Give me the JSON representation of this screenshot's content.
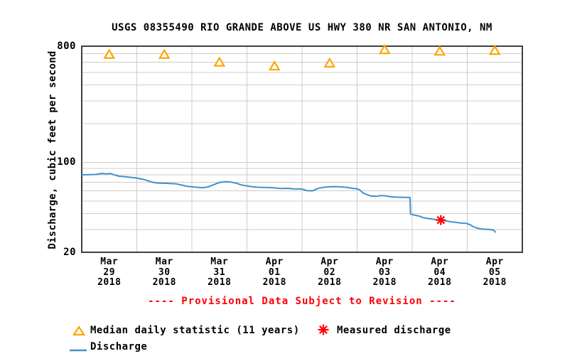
{
  "title": "USGS 08355490 RIO GRANDE ABOVE US HWY 380 NR SAN ANTONIO, NM",
  "provisional_note": "---- Provisional Data Subject to Revision ----",
  "legend": {
    "median_label": "Median daily statistic (11 years)",
    "measured_label": "Measured discharge",
    "discharge_label": "Discharge"
  },
  "colors": {
    "discharge": "#4091ce",
    "median": "#ffa500",
    "measured": "#ff0000",
    "provisional": "#ff0000",
    "grid": "#cccccc",
    "frame": "#404040",
    "text": "#000000"
  },
  "chart_data": {
    "type": "line",
    "title": "USGS 08355490 RIO GRANDE ABOVE US HWY 380 NR SAN ANTONIO, NM",
    "xlabel": "",
    "ylabel": "Discharge, cubic feet per second",
    "y_scale": "log",
    "ylim": [
      20,
      800
    ],
    "y_major_ticks": [
      800,
      100,
      20
    ],
    "y_gridlines": [
      700,
      600,
      500,
      400,
      300,
      200,
      100,
      90,
      80,
      70,
      60,
      50,
      40,
      30
    ],
    "x_days": 8,
    "x_categories": [
      [
        "Mar",
        "29",
        "2018"
      ],
      [
        "Mar",
        "30",
        "2018"
      ],
      [
        "Mar",
        "31",
        "2018"
      ],
      [
        "Apr",
        "01",
        "2018"
      ],
      [
        "Apr",
        "02",
        "2018"
      ],
      [
        "Apr",
        "03",
        "2018"
      ],
      [
        "Apr",
        "04",
        "2018"
      ],
      [
        "Apr",
        "05",
        "2018"
      ]
    ],
    "grid": true,
    "legend_position": "bottom-left",
    "series": [
      {
        "name": "Discharge",
        "marker": "line",
        "units": "cubic feet per second",
        "x_units": "days since Mar 29 2018 00:00",
        "points": [
          [
            0.0,
            80.0
          ],
          [
            0.13,
            80.2
          ],
          [
            0.26,
            80.5
          ],
          [
            0.36,
            82.0
          ],
          [
            0.45,
            81.3
          ],
          [
            0.52,
            82.0
          ],
          [
            0.58,
            80.2
          ],
          [
            0.68,
            78.0
          ],
          [
            0.77,
            77.5
          ],
          [
            0.88,
            76.5
          ],
          [
            1.0,
            75.5
          ],
          [
            1.1,
            74.0
          ],
          [
            1.2,
            72.0
          ],
          [
            1.29,
            70.0
          ],
          [
            1.38,
            69.0
          ],
          [
            1.51,
            68.8
          ],
          [
            1.61,
            68.5
          ],
          [
            1.72,
            68.0
          ],
          [
            1.82,
            66.5
          ],
          [
            1.92,
            65.0
          ],
          [
            2.0,
            64.5
          ],
          [
            2.1,
            64.0
          ],
          [
            2.19,
            63.6
          ],
          [
            2.28,
            64.2
          ],
          [
            2.36,
            66.0
          ],
          [
            2.45,
            68.5
          ],
          [
            2.52,
            70.0
          ],
          [
            2.62,
            70.6
          ],
          [
            2.71,
            70.2
          ],
          [
            2.8,
            69.0
          ],
          [
            2.9,
            66.7
          ],
          [
            3.0,
            65.6
          ],
          [
            3.1,
            64.5
          ],
          [
            3.23,
            64.0
          ],
          [
            3.35,
            63.8
          ],
          [
            3.48,
            63.4
          ],
          [
            3.61,
            62.6
          ],
          [
            3.74,
            62.8
          ],
          [
            3.83,
            62.3
          ],
          [
            3.94,
            62.1
          ],
          [
            4.0,
            62.0
          ],
          [
            4.09,
            60.3
          ],
          [
            4.19,
            60.1
          ],
          [
            4.3,
            63.0
          ],
          [
            4.39,
            64.0
          ],
          [
            4.48,
            64.5
          ],
          [
            4.58,
            64.8
          ],
          [
            4.68,
            64.5
          ],
          [
            4.81,
            64.0
          ],
          [
            4.9,
            62.9
          ],
          [
            5.0,
            62.2
          ],
          [
            5.05,
            61.0
          ],
          [
            5.1,
            58.1
          ],
          [
            5.16,
            56.5
          ],
          [
            5.25,
            54.8
          ],
          [
            5.35,
            54.5
          ],
          [
            5.43,
            55.2
          ],
          [
            5.51,
            55.0
          ],
          [
            5.59,
            54.2
          ],
          [
            5.69,
            53.8
          ],
          [
            5.8,
            53.5
          ],
          [
            5.9,
            53.4
          ],
          [
            5.96,
            53.3
          ],
          [
            5.97,
            39.6
          ],
          [
            6.04,
            38.9
          ],
          [
            6.13,
            38.2
          ],
          [
            6.18,
            37.4
          ],
          [
            6.26,
            36.8
          ],
          [
            6.35,
            36.3
          ],
          [
            6.45,
            35.8
          ],
          [
            6.52,
            35.6
          ],
          [
            6.62,
            35.0
          ],
          [
            6.71,
            34.5
          ],
          [
            6.81,
            34.1
          ],
          [
            6.9,
            33.7
          ],
          [
            6.99,
            33.5
          ],
          [
            7.06,
            32.6
          ],
          [
            7.11,
            31.6
          ],
          [
            7.16,
            31.0
          ],
          [
            7.24,
            30.4
          ],
          [
            7.42,
            30.0
          ],
          [
            7.47,
            29.9
          ],
          [
            7.5,
            29.1
          ],
          [
            7.51,
            28.4
          ]
        ]
      },
      {
        "name": "Median daily statistic (11 years)",
        "marker": "hollow-triangle",
        "points": [
          [
            0.5,
            690
          ],
          [
            1.5,
            690
          ],
          [
            2.5,
            600
          ],
          [
            3.5,
            560
          ],
          [
            4.5,
            590
          ],
          [
            5.5,
            750
          ],
          [
            6.5,
            730
          ],
          [
            7.5,
            740
          ]
        ]
      },
      {
        "name": "Measured discharge",
        "marker": "asterisk",
        "points": [
          [
            6.52,
            35.6
          ]
        ]
      }
    ]
  }
}
